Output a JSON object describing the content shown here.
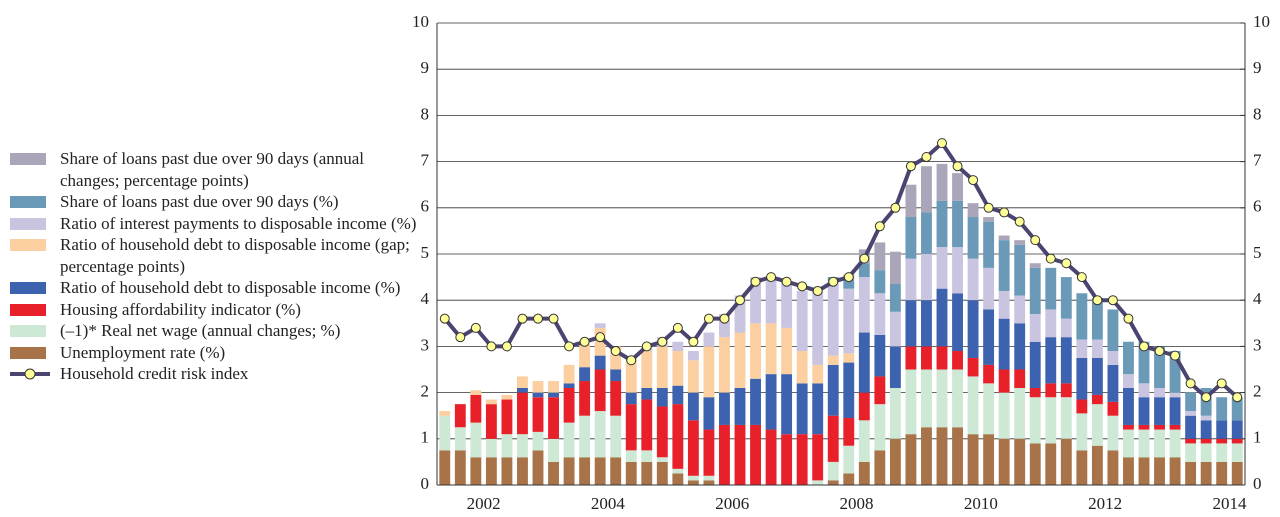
{
  "chart_data": {
    "type": "bar",
    "categories": [
      null,
      null,
      "2002",
      null,
      null,
      null,
      null,
      null,
      null,
      null,
      "2004",
      null,
      null,
      null,
      null,
      null,
      null,
      null,
      "2006",
      null,
      null,
      null,
      null,
      null,
      null,
      null,
      "2008",
      null,
      null,
      null,
      null,
      null,
      null,
      null,
      "2010",
      null,
      null,
      null,
      null,
      null,
      null,
      null,
      "2012",
      null,
      null,
      null,
      null,
      null,
      null,
      null,
      "2014",
      null
    ],
    "ylim": [
      0,
      10
    ],
    "yticks": [
      0,
      1,
      2,
      3,
      4,
      5,
      6,
      7,
      8,
      9,
      10
    ],
    "y2lim": [
      0,
      10
    ],
    "y2ticks": [
      0,
      1,
      2,
      3,
      4,
      5,
      6,
      7,
      8,
      9,
      10
    ],
    "grid": true,
    "stacked": true,
    "series": [
      {
        "name": "Share of loans past due over 90 days (annual changes; percentage points)",
        "color": "#aaa5b8",
        "values": [
          0,
          0,
          0,
          0,
          0,
          0,
          0,
          0,
          0,
          0,
          0,
          0,
          0,
          0,
          0,
          0,
          0,
          0,
          0,
          0,
          0,
          0,
          0,
          0,
          0,
          0,
          0.1,
          0.3,
          0.6,
          0.7,
          0.7,
          1.0,
          0.8,
          0.6,
          0.3,
          0.1,
          0.1,
          0.1,
          0.1,
          0,
          0,
          0,
          0,
          0,
          0,
          0,
          0,
          0,
          0,
          0,
          0,
          0
        ]
      },
      {
        "name": "Share of loans past due over 90 days (%)",
        "color": "#6a9ab8",
        "values": [
          0,
          0,
          0,
          0,
          0,
          0,
          0,
          0,
          0,
          0,
          0,
          0,
          0,
          0,
          0,
          0,
          0,
          0,
          0,
          0,
          0,
          0,
          0,
          0,
          0,
          0.1,
          0.2,
          0.3,
          0.5,
          0.6,
          0.9,
          0.9,
          1.0,
          1.0,
          0.9,
          1.0,
          1.1,
          1.1,
          1.0,
          0.9,
          0.9,
          1.0,
          0.9,
          0.9,
          0.7,
          0.9,
          0.9,
          0.9,
          0.4,
          0.6,
          0.5,
          0.5
        ]
      },
      {
        "name": "Ratio of interest payments to disposable income (%)",
        "color": "#c9c4e0",
        "values": [
          0,
          0,
          0,
          0,
          0,
          0,
          0,
          0,
          0,
          0,
          0.1,
          0,
          0,
          0.1,
          0.2,
          0.2,
          0.2,
          0.3,
          0.5,
          0.8,
          1.0,
          1.0,
          1.0,
          1.3,
          1.6,
          1.6,
          1.4,
          1.2,
          0.9,
          0.75,
          0.9,
          1.0,
          0.9,
          1.0,
          0.9,
          0.9,
          0.6,
          0.6,
          0.6,
          0.6,
          0.4,
          0.4,
          0.4,
          0.3,
          0.3,
          0.3,
          0.2,
          0.1,
          0.1,
          0.1,
          0,
          0
        ]
      },
      {
        "name": "Ratio of household debt to disposable income (gap; percentage points)",
        "color": "#fbcf9f",
        "values": [
          0.1,
          0,
          0.1,
          0.1,
          0.1,
          0.25,
          0.25,
          0.25,
          0.4,
          0.5,
          0.6,
          0.5,
          0.75,
          0.8,
          0.9,
          0.75,
          0.7,
          1.1,
          1.2,
          1.2,
          1.2,
          1.1,
          1.0,
          0.7,
          0.4,
          0.2,
          0.2,
          0,
          0,
          0,
          0,
          0,
          0,
          0,
          0,
          0,
          0,
          0,
          0,
          0,
          0,
          0,
          0,
          0,
          0,
          0,
          0,
          0,
          0,
          0,
          0,
          0
        ]
      },
      {
        "name": "Ratio of household debt to disposable income (%)",
        "color": "#3d62b0",
        "values": [
          0,
          0,
          0,
          0,
          0,
          0.1,
          0.1,
          0.1,
          0.1,
          0.3,
          0.3,
          0.25,
          0.25,
          0.25,
          0.4,
          0.4,
          0.6,
          0.7,
          0.7,
          0.8,
          1.0,
          1.2,
          1.3,
          1.1,
          1.1,
          1.1,
          1.2,
          1.3,
          0.9,
          0.9,
          1.0,
          1.0,
          1.25,
          1.25,
          1.25,
          1.2,
          1.1,
          1.0,
          1.0,
          1.0,
          1.0,
          0.9,
          0.8,
          0.8,
          0.8,
          0.6,
          0.6,
          0.6,
          0.5,
          0.4,
          0.4,
          0.4
        ]
      },
      {
        "name": "Housing affordability indicator (%)",
        "color": "#e8202a",
        "values": [
          0,
          0.5,
          0.6,
          0.75,
          0.75,
          0.9,
          0.75,
          0.9,
          0.75,
          0.75,
          0.9,
          0.75,
          1.0,
          1.1,
          1.1,
          1.4,
          1.2,
          1.0,
          1.3,
          1.3,
          1.3,
          1.2,
          1.1,
          1.1,
          1.0,
          1.0,
          0.6,
          0.6,
          0.6,
          0,
          0.5,
          0.5,
          0.5,
          0.4,
          0.4,
          0.4,
          0.5,
          0.4,
          0.2,
          0.3,
          0.3,
          0.3,
          0.2,
          0.3,
          0.1,
          0.1,
          0.1,
          0.1,
          0.1,
          0.1,
          0.1,
          0.1
        ]
      },
      {
        "name": "(–1)* Real net wage (annual changes; %)",
        "color": "#cde8d4",
        "values": [
          0.75,
          0.5,
          0.75,
          0.4,
          0.5,
          0.5,
          0.4,
          0.5,
          0.75,
          0.9,
          1.0,
          0.9,
          0.25,
          0.25,
          0.1,
          0.1,
          0.1,
          0.1,
          0,
          0,
          0,
          0,
          0,
          0,
          0.1,
          0.4,
          0.6,
          0.9,
          1.0,
          1.1,
          1.4,
          1.25,
          1.25,
          1.25,
          1.25,
          1.1,
          1.0,
          1.1,
          1.0,
          1.0,
          0.9,
          0.8,
          0.9,
          0.75,
          0.6,
          0.6,
          0.6,
          0.6,
          0.4,
          0.4,
          0.4,
          0.4
        ]
      },
      {
        "name": "Unemployment rate (%)",
        "color": "#a87348",
        "values": [
          0.75,
          0.75,
          0.6,
          0.6,
          0.6,
          0.6,
          0.75,
          0.5,
          0.6,
          0.6,
          0.6,
          0.6,
          0.5,
          0.5,
          0.5,
          0.25,
          0.1,
          0.1,
          0,
          0,
          0,
          0,
          0,
          0,
          0,
          0.1,
          0.25,
          0.5,
          0.75,
          1.0,
          1.1,
          1.25,
          1.25,
          1.25,
          1.1,
          1.1,
          1.0,
          1.0,
          0.9,
          0.9,
          1.0,
          0.75,
          0.85,
          0.75,
          0.6,
          0.6,
          0.6,
          0.6,
          0.5,
          0.5,
          0.5,
          0.5
        ]
      },
      {
        "name": "Household credit risk index",
        "type": "line",
        "color": "#4b4470",
        "marker_color": "#ffff99",
        "values": [
          3.6,
          3.2,
          3.4,
          3.0,
          3.0,
          3.6,
          3.6,
          3.6,
          3.0,
          3.1,
          3.2,
          2.9,
          2.7,
          3.0,
          3.1,
          3.4,
          3.1,
          3.6,
          3.6,
          4.0,
          4.4,
          4.5,
          4.4,
          4.3,
          4.2,
          4.4,
          4.5,
          4.9,
          5.6,
          6.0,
          6.9,
          7.1,
          7.4,
          6.9,
          6.6,
          6.0,
          5.9,
          5.7,
          5.3,
          4.9,
          4.8,
          4.5,
          4.0,
          4.0,
          3.6,
          3.0,
          2.9,
          2.8,
          2.2,
          1.9,
          2.2,
          1.9
        ]
      }
    ]
  }
}
